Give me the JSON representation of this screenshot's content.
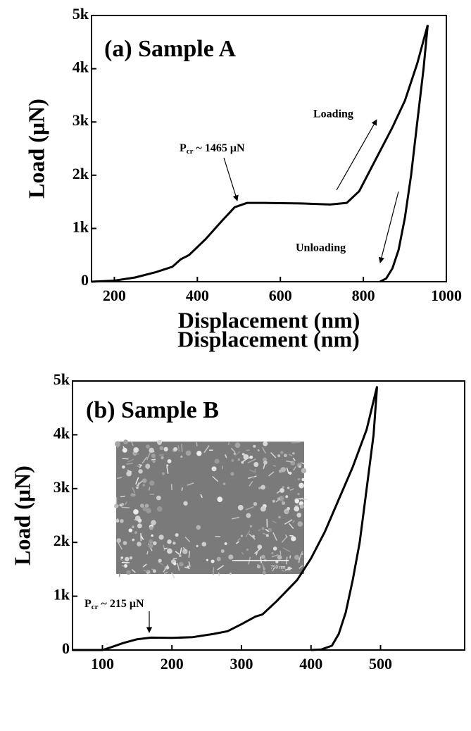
{
  "chart_data": [
    {
      "type": "line",
      "title": "(a) Sample A",
      "xlabel": "Displacement (nm)",
      "ylabel": "Load (μN)",
      "xlim": [
        145,
        1000
      ],
      "ylim": [
        0,
        5000
      ],
      "xticks": [
        200,
        400,
        600,
        800,
        1000
      ],
      "yticks": [
        0,
        {
          "value": 1000,
          "label": "1k"
        },
        {
          "value": 2000,
          "label": "2k"
        },
        {
          "value": 3000,
          "label": "3k"
        },
        {
          "value": 4000,
          "label": "4k"
        },
        {
          "value": 5000,
          "label": "5k"
        }
      ],
      "series": [
        {
          "color": "#000000",
          "x": [
            145,
            200,
            250,
            300,
            340,
            360,
            380,
            420,
            460,
            490,
            520,
            560,
            650,
            720,
            760,
            790,
            830,
            870,
            900,
            930,
            955
          ],
          "values": [
            0,
            20,
            80,
            180,
            280,
            420,
            500,
            800,
            1150,
            1400,
            1480,
            1480,
            1470,
            1450,
            1480,
            1700,
            2300,
            2900,
            3400,
            4100,
            4820
          ]
        },
        {
          "color": "#000000",
          "x": [
            955,
            945,
            930,
            915,
            900,
            885,
            870,
            855,
            840
          ],
          "values": [
            4820,
            4000,
            3000,
            2000,
            1200,
            600,
            250,
            60,
            0
          ]
        }
      ],
      "annotations": [
        {
          "text": "Loading"
        },
        {
          "text": "Unloading"
        },
        {
          "symbol": "P",
          "subscript": "cr",
          "text": " ~ 1465 μN"
        }
      ]
    },
    {
      "type": "line",
      "title": "(b) Sample B",
      "xlabel": "Displacement (nm)",
      "ylabel": "Load (μN)",
      "xlim": [
        57,
        621
      ],
      "ylim": [
        0,
        5000
      ],
      "xticks": [
        100,
        200,
        300,
        400,
        500
      ],
      "yticks": [
        0,
        {
          "value": 1000,
          "label": "1k"
        },
        {
          "value": 2000,
          "label": "2k"
        },
        {
          "value": 3000,
          "label": "3k"
        },
        {
          "value": 4000,
          "label": "4k"
        },
        {
          "value": 5000,
          "label": "5k"
        }
      ],
      "series": [
        {
          "color": "#000000",
          "x": [
            57,
            100,
            110,
            130,
            150,
            170,
            200,
            230,
            260,
            280,
            300,
            320,
            330,
            350,
            380,
            400,
            420,
            440,
            460,
            480,
            495
          ],
          "values": [
            0,
            0,
            40,
            130,
            200,
            230,
            225,
            240,
            300,
            350,
            480,
            620,
            660,
            900,
            1300,
            1700,
            2200,
            2800,
            3400,
            4100,
            4900
          ]
        },
        {
          "color": "#000000",
          "x": [
            495,
            490,
            480,
            470,
            460,
            450,
            440,
            430,
            415,
            400
          ],
          "values": [
            4900,
            4000,
            3000,
            2000,
            1300,
            700,
            300,
            80,
            10,
            0
          ]
        }
      ],
      "annotations": [
        {
          "symbol": "P",
          "subscript": "cr",
          "text": " ~ 215 μN"
        }
      ],
      "inset_scale_label": "750 nm"
    }
  ]
}
